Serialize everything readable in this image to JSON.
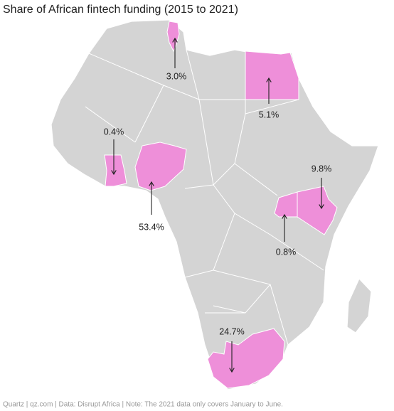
{
  "chart_data": {
    "type": "map",
    "title": "Share of African fintech funding (2015 to 2021)",
    "source": "Quartz | qz.com | Data: Disrupt Africa | Note: The 2021 data only covers January to June.",
    "values": [
      3.0,
      5.1,
      0.4,
      53.4,
      9.8,
      0.8,
      24.7
    ],
    "value_labels": [
      "3.0%",
      "5.1%",
      "0.4%",
      "53.4%",
      "9.8%",
      "0.8%",
      "24.7%"
    ],
    "color": "#ee8fd9"
  }
}
